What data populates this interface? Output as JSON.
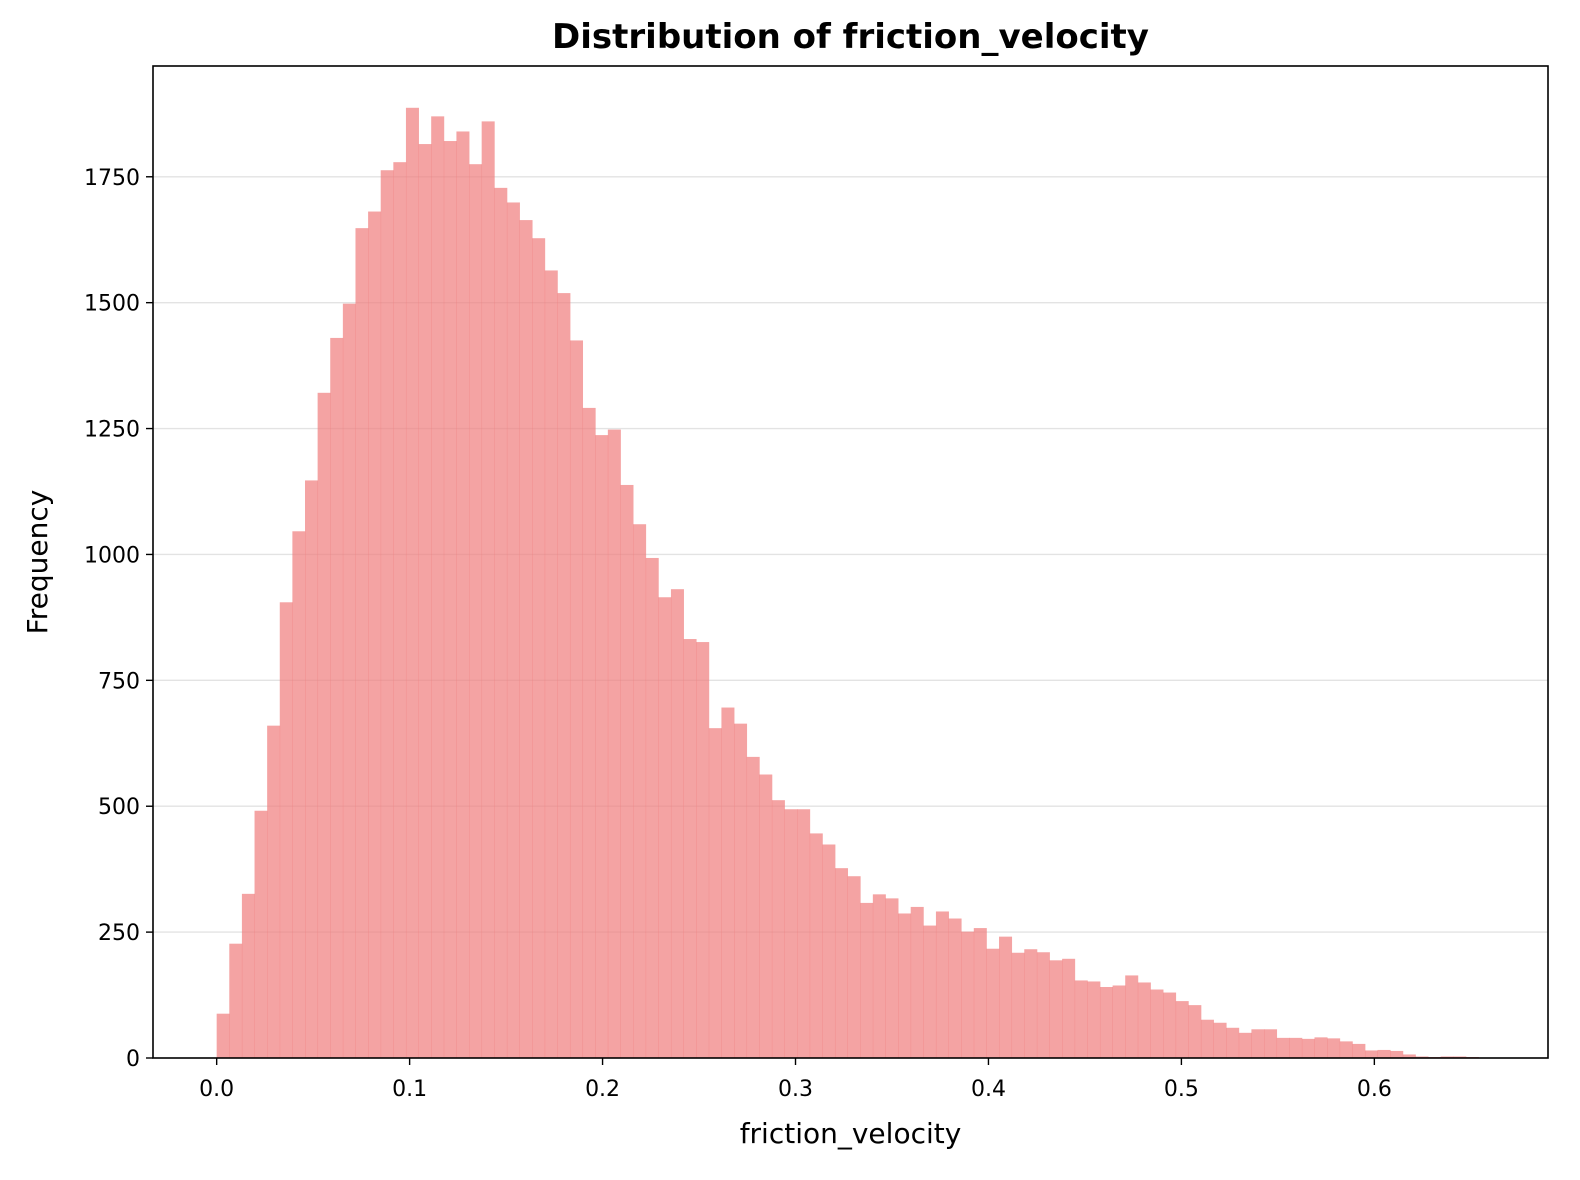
{
  "chart_data": {
    "type": "bar",
    "title": "Distribution of friction_velocity",
    "xlabel": "friction_velocity",
    "ylabel": "Frequency",
    "xlim": [
      -0.033,
      0.69
    ],
    "ylim": [
      0,
      1970
    ],
    "xticks": [
      0.0,
      0.1,
      0.2,
      0.3,
      0.4,
      0.5,
      0.6
    ],
    "xtick_labels": [
      "0.0",
      "0.1",
      "0.2",
      "0.3",
      "0.4",
      "0.5",
      "0.6"
    ],
    "yticks": [
      0,
      250,
      500,
      750,
      1000,
      1250,
      1500,
      1750
    ],
    "ytick_labels": [
      "0",
      "250",
      "500",
      "750",
      "1000",
      "1250",
      "1500",
      "1750"
    ],
    "grid": "horizontal",
    "bar_color": "#f08080",
    "bar_opacity": 0.72,
    "bin_start": 0.0,
    "bin_width": 0.00654,
    "values": [
      88,
      227,
      326,
      491,
      660,
      905,
      1046,
      1147,
      1321,
      1430,
      1498,
      1648,
      1681,
      1763,
      1779,
      1887,
      1815,
      1870,
      1821,
      1840,
      1775,
      1860,
      1728,
      1699,
      1664,
      1628,
      1564,
      1519,
      1425,
      1291,
      1237,
      1248,
      1138,
      1060,
      993,
      915,
      931,
      832,
      826,
      655,
      696,
      664,
      598,
      563,
      512,
      494,
      494,
      446,
      424,
      377,
      361,
      308,
      325,
      317,
      287,
      300,
      263,
      291,
      277,
      251,
      258,
      217,
      241,
      209,
      216,
      210,
      194,
      197,
      154,
      152,
      141,
      144,
      164,
      150,
      136,
      130,
      113,
      105,
      76,
      70,
      60,
      50,
      57,
      57,
      40,
      40,
      38,
      41,
      39,
      33,
      28,
      15,
      16,
      14,
      7,
      3,
      2,
      3,
      3,
      2
    ]
  }
}
